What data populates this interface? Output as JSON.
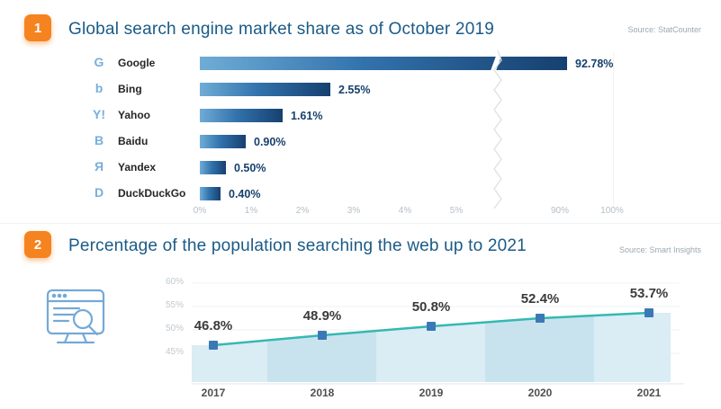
{
  "colors": {
    "accent_orange": "#F5831F",
    "title_blue": "#1A5B87",
    "bar_gradient_start": "#6FACD6",
    "bar_gradient_end": "#16406F",
    "value_label_blue": "#17406D",
    "icon_blue": "#78AEDC",
    "line_teal": "#35B8B2",
    "marker_blue": "#3A79B6",
    "area_fill": "#DAECF4",
    "tick_gray": "#B4BEC6"
  },
  "section1": {
    "badge": "1",
    "title": "Global search engine market share as of October 2019",
    "source": "Source: StatCounter"
  },
  "section2": {
    "badge": "2",
    "title": "Percentage of the population searching the web up to 2021",
    "source": "Source: Smart Insights"
  },
  "chart_data": [
    {
      "type": "bar",
      "orientation": "horizontal",
      "title": "Global search engine market share as of October 2019",
      "source": "StatCounter",
      "categories": [
        "Google",
        "Bing",
        "Yahoo",
        "Baidu",
        "Yandex",
        "DuckDuckGo"
      ],
      "values": [
        92.78,
        2.55,
        1.61,
        0.9,
        0.5,
        0.4
      ],
      "value_labels": [
        "92.78%",
        "2.55%",
        "1.61%",
        "0.90%",
        "0.50%",
        "0.40%"
      ],
      "icons": [
        "google-icon",
        "bing-icon",
        "yahoo-icon",
        "baidu-icon",
        "yandex-icon",
        "duckduckgo-icon"
      ],
      "icon_glyphs": [
        "G",
        "b",
        "Y!",
        "B",
        "Я",
        "D"
      ],
      "x_tick_labels": [
        "0%",
        "1%",
        "2%",
        "3%",
        "4%",
        "5%",
        "90%",
        "100%"
      ],
      "axis_break_between": [
        "5%",
        "90%"
      ],
      "xlabel": "",
      "ylabel": ""
    },
    {
      "type": "area",
      "title": "Percentage of the population searching the web up to 2021",
      "source": "Smart Insights",
      "categories": [
        "2017",
        "2018",
        "2019",
        "2020",
        "2021"
      ],
      "values": [
        46.8,
        48.9,
        50.8,
        52.4,
        53.7
      ],
      "value_labels": [
        "46.8%",
        "48.9%",
        "50.8%",
        "52.4%",
        "53.7%"
      ],
      "y_tick_labels": [
        "60%",
        "55%",
        "50%",
        "45%"
      ],
      "ylim": [
        40,
        62
      ],
      "grid": true,
      "legend": false
    }
  ]
}
